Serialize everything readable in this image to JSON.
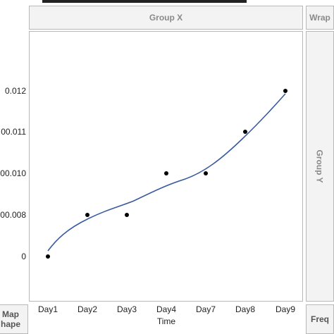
{
  "zones": {
    "group_x": "Group X",
    "wrap": "Wrap",
    "group_y": "Group Y",
    "map_shape_line1": "Map",
    "map_shape_line2": "hape",
    "freq": "Freq"
  },
  "chart_data": {
    "type": "scatter",
    "xlabel": "Time",
    "ylabel": "",
    "categories": [
      "Day1",
      "Day2",
      "Day3",
      "Day4",
      "Day7",
      "Day8",
      "Day9"
    ],
    "y_tick_labels": [
      "0",
      "00.008",
      "00.010",
      "00.011",
      "0.012"
    ],
    "series": [
      {
        "values": [
          "0",
          "00.008",
          "00.008",
          "00.010",
          "00.010",
          "00.011",
          "0.012"
        ],
        "color": "#000000"
      }
    ],
    "smoother": {
      "color": "#3a5aa0"
    },
    "grid": false
  },
  "colors": {
    "zone_bg": "#f3f3f3",
    "zone_border": "#b8b8b8",
    "zone_text": "#8a8a8a"
  }
}
